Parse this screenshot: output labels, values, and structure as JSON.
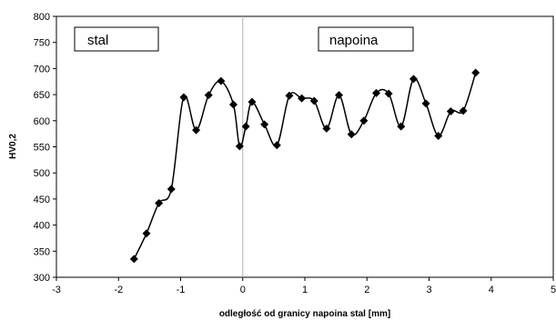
{
  "chart_data": {
    "type": "line",
    "xlabel": "odległość od granicy napoina stal [mm]",
    "ylabel": "HV0,2",
    "xlim": [
      -3,
      5
    ],
    "ylim": [
      300,
      800
    ],
    "xticks": [
      -3,
      -2,
      -1,
      0,
      1,
      2,
      3,
      4,
      5
    ],
    "yticks": [
      300,
      350,
      400,
      450,
      500,
      550,
      600,
      650,
      700,
      750,
      800
    ],
    "grid": "none",
    "vertical_reference_line_x": 0,
    "annotations": [
      {
        "text": "stal",
        "region": "left"
      },
      {
        "text": "napoina",
        "region": "right"
      }
    ],
    "series": [
      {
        "marker": "diamond",
        "color": "#000000",
        "x": [
          -1.75,
          -1.55,
          -1.35,
          -1.15,
          -0.95,
          -0.75,
          -0.55,
          -0.35,
          -0.15,
          -0.05,
          0.05,
          0.15,
          0.35,
          0.55,
          0.75,
          0.95,
          1.15,
          1.35,
          1.55,
          1.75,
          1.95,
          2.15,
          2.35,
          2.55,
          2.75,
          2.95,
          3.15,
          3.35,
          3.55,
          3.75
        ],
        "values": [
          335,
          384,
          442,
          469,
          645,
          582,
          649,
          676,
          631,
          551,
          589,
          636,
          593,
          553,
          648,
          643,
          638,
          585,
          649,
          574,
          600,
          653,
          652,
          589,
          680,
          633,
          571,
          618,
          619,
          692
        ]
      }
    ]
  }
}
